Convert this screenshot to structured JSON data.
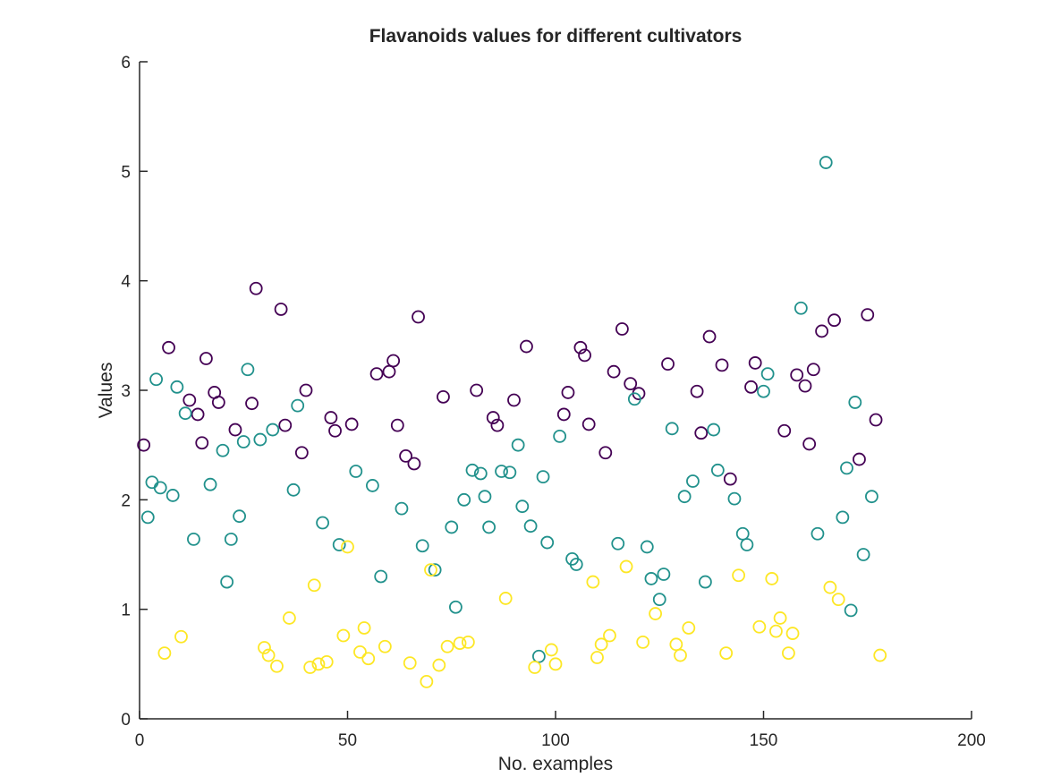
{
  "chart_data": {
    "type": "scatter",
    "title": "Flavanoids values for different cultivators",
    "xlabel": "No. examples",
    "ylabel": "Values",
    "xlim": [
      0,
      200
    ],
    "ylim": [
      0,
      6
    ],
    "xticks": [
      "0",
      "50",
      "100",
      "150",
      "200"
    ],
    "yticks": [
      "0",
      "1",
      "2",
      "3",
      "4",
      "5",
      "6"
    ],
    "grid": false,
    "legend": "none",
    "marker": "open-circle",
    "series": [
      {
        "color": "#440154",
        "points": [
          [
            1,
            2.5
          ],
          [
            7,
            3.39
          ],
          [
            12,
            2.91
          ],
          [
            14,
            2.78
          ],
          [
            15,
            2.52
          ],
          [
            16,
            3.29
          ],
          [
            18,
            2.98
          ],
          [
            19,
            2.89
          ],
          [
            23,
            2.64
          ],
          [
            27,
            2.88
          ],
          [
            28,
            3.93
          ],
          [
            34,
            3.74
          ],
          [
            35,
            2.68
          ],
          [
            39,
            2.43
          ],
          [
            40,
            3.0
          ],
          [
            46,
            2.75
          ],
          [
            47,
            2.63
          ],
          [
            51,
            2.69
          ],
          [
            57,
            3.15
          ],
          [
            60,
            3.17
          ],
          [
            61,
            3.27
          ],
          [
            62,
            2.68
          ],
          [
            64,
            2.4
          ],
          [
            66,
            2.33
          ],
          [
            67,
            3.67
          ],
          [
            73,
            2.94
          ],
          [
            81,
            3.0
          ],
          [
            85,
            2.75
          ],
          [
            86,
            2.68
          ],
          [
            90,
            2.91
          ],
          [
            93,
            3.4
          ],
          [
            102,
            2.78
          ],
          [
            103,
            2.98
          ],
          [
            106,
            3.39
          ],
          [
            107,
            3.32
          ],
          [
            108,
            2.69
          ],
          [
            112,
            2.43
          ],
          [
            114,
            3.17
          ],
          [
            116,
            3.56
          ],
          [
            118,
            3.06
          ],
          [
            120,
            2.97
          ],
          [
            127,
            3.24
          ],
          [
            134,
            2.99
          ],
          [
            135,
            2.61
          ],
          [
            137,
            3.49
          ],
          [
            140,
            3.23
          ],
          [
            142,
            2.19
          ],
          [
            147,
            3.03
          ],
          [
            148,
            3.25
          ],
          [
            155,
            2.63
          ],
          [
            158,
            3.14
          ],
          [
            160,
            3.04
          ],
          [
            161,
            2.51
          ],
          [
            162,
            3.19
          ],
          [
            164,
            3.54
          ],
          [
            167,
            3.64
          ],
          [
            173,
            2.37
          ],
          [
            175,
            3.69
          ],
          [
            177,
            2.73
          ]
        ]
      },
      {
        "color": "#21918c",
        "points": [
          [
            2,
            1.84
          ],
          [
            3,
            2.16
          ],
          [
            4,
            3.1
          ],
          [
            5,
            2.11
          ],
          [
            8,
            2.04
          ],
          [
            9,
            3.03
          ],
          [
            11,
            2.79
          ],
          [
            13,
            1.64
          ],
          [
            17,
            2.14
          ],
          [
            20,
            2.45
          ],
          [
            21,
            1.25
          ],
          [
            22,
            1.64
          ],
          [
            24,
            1.85
          ],
          [
            25,
            2.53
          ],
          [
            26,
            3.19
          ],
          [
            29,
            2.55
          ],
          [
            32,
            2.64
          ],
          [
            37,
            2.09
          ],
          [
            38,
            2.86
          ],
          [
            44,
            1.79
          ],
          [
            48,
            1.59
          ],
          [
            52,
            2.26
          ],
          [
            56,
            2.13
          ],
          [
            58,
            1.3
          ],
          [
            63,
            1.92
          ],
          [
            68,
            1.58
          ],
          [
            71,
            1.36
          ],
          [
            75,
            1.75
          ],
          [
            76,
            1.02
          ],
          [
            78,
            2.0
          ],
          [
            80,
            2.27
          ],
          [
            82,
            2.24
          ],
          [
            83,
            2.03
          ],
          [
            84,
            1.75
          ],
          [
            87,
            2.26
          ],
          [
            89,
            2.25
          ],
          [
            91,
            2.5
          ],
          [
            92,
            1.94
          ],
          [
            94,
            1.76
          ],
          [
            96,
            0.57
          ],
          [
            97,
            2.21
          ],
          [
            98,
            1.61
          ],
          [
            101,
            2.58
          ],
          [
            104,
            1.46
          ],
          [
            105,
            1.41
          ],
          [
            115,
            1.6
          ],
          [
            119,
            2.92
          ],
          [
            122,
            1.57
          ],
          [
            123,
            1.28
          ],
          [
            125,
            1.09
          ],
          [
            126,
            1.32
          ],
          [
            128,
            2.65
          ],
          [
            131,
            2.03
          ],
          [
            133,
            2.17
          ],
          [
            136,
            1.25
          ],
          [
            138,
            2.64
          ],
          [
            139,
            2.27
          ],
          [
            143,
            2.01
          ],
          [
            145,
            1.69
          ],
          [
            146,
            1.59
          ],
          [
            150,
            2.99
          ],
          [
            151,
            3.15
          ],
          [
            159,
            3.75
          ],
          [
            163,
            1.69
          ],
          [
            165,
            5.08
          ],
          [
            169,
            1.84
          ],
          [
            170,
            2.29
          ],
          [
            171,
            0.99
          ],
          [
            172,
            2.89
          ],
          [
            174,
            1.5
          ],
          [
            176,
            2.03
          ]
        ]
      },
      {
        "color": "#fde725",
        "points": [
          [
            6,
            0.6
          ],
          [
            10,
            0.75
          ],
          [
            30,
            0.65
          ],
          [
            31,
            0.58
          ],
          [
            33,
            0.48
          ],
          [
            36,
            0.92
          ],
          [
            41,
            0.47
          ],
          [
            42,
            1.22
          ],
          [
            43,
            0.5
          ],
          [
            45,
            0.52
          ],
          [
            49,
            0.76
          ],
          [
            50,
            1.57
          ],
          [
            53,
            0.61
          ],
          [
            54,
            0.83
          ],
          [
            55,
            0.55
          ],
          [
            59,
            0.66
          ],
          [
            65,
            0.51
          ],
          [
            69,
            0.34
          ],
          [
            70,
            1.36
          ],
          [
            72,
            0.49
          ],
          [
            74,
            0.66
          ],
          [
            77,
            0.69
          ],
          [
            79,
            0.7
          ],
          [
            88,
            1.1
          ],
          [
            95,
            0.47
          ],
          [
            99,
            0.63
          ],
          [
            100,
            0.5
          ],
          [
            109,
            1.25
          ],
          [
            110,
            0.56
          ],
          [
            111,
            0.68
          ],
          [
            113,
            0.76
          ],
          [
            117,
            1.39
          ],
          [
            121,
            0.7
          ],
          [
            124,
            0.96
          ],
          [
            129,
            0.68
          ],
          [
            130,
            0.58
          ],
          [
            132,
            0.83
          ],
          [
            141,
            0.6
          ],
          [
            144,
            1.31
          ],
          [
            149,
            0.84
          ],
          [
            152,
            1.28
          ],
          [
            153,
            0.8
          ],
          [
            154,
            0.92
          ],
          [
            156,
            0.6
          ],
          [
            157,
            0.78
          ],
          [
            166,
            1.2
          ],
          [
            168,
            1.09
          ],
          [
            178,
            0.58
          ]
        ]
      }
    ]
  }
}
